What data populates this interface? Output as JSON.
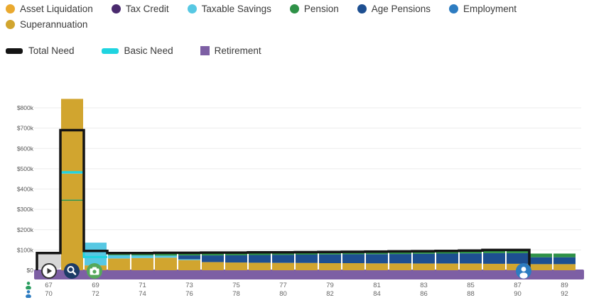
{
  "legend": {
    "series": [
      {
        "label": "Asset Liquidation",
        "color": "#eaa92f"
      },
      {
        "label": "Tax Credit",
        "color": "#4a2a6e"
      },
      {
        "label": "Taxable Savings",
        "color": "#57c8e3"
      },
      {
        "label": "Pension",
        "color": "#2e9147"
      },
      {
        "label": "Age Pensions",
        "color": "#1d4f91"
      },
      {
        "label": "Employment",
        "color": "#2d7cc1"
      },
      {
        "label": "Superannuation",
        "color": "#d1a52f"
      }
    ],
    "lines": [
      {
        "label": "Total Need",
        "color": "#141414"
      },
      {
        "label": "Basic Need",
        "color": "#1fd4e0"
      },
      {
        "label": "Retirement",
        "color": "#7d5fa4"
      }
    ]
  },
  "controls": {
    "buttons": [
      {
        "icon": "play-icon",
        "bg": "#ffffff"
      },
      {
        "icon": "magnifier-icon",
        "bg": "#1d3b66"
      },
      {
        "icon": "camera-icon",
        "bg": "#55a85c"
      },
      {
        "icon": "person-icon",
        "bg": "#2d7cc1"
      }
    ],
    "axis_icons": [
      {
        "icon": "person-icon",
        "color": "#2a9d5f"
      },
      {
        "icon": "person-icon",
        "color": "#2d7cc1"
      }
    ]
  },
  "chart_data": {
    "type": "bar",
    "stacked": true,
    "title": "",
    "xlabel": "",
    "ylabel": "",
    "unit": "$k",
    "ylim": [
      0,
      800
    ],
    "grid": true,
    "legend_position": "top",
    "y_ticks": [
      {
        "value": 0,
        "label": "$0"
      },
      {
        "value": 100,
        "label": "$100k"
      },
      {
        "value": 200,
        "label": "$200k"
      },
      {
        "value": 300,
        "label": "$300k"
      },
      {
        "value": 400,
        "label": "$400k"
      },
      {
        "value": 500,
        "label": "$500k"
      },
      {
        "value": 600,
        "label": "$600k"
      },
      {
        "value": 700,
        "label": "$700k"
      },
      {
        "value": 800,
        "label": "$800k"
      }
    ],
    "x_labels": [
      {
        "top": "67",
        "bottom": "70"
      },
      {
        "top": "69",
        "bottom": "72"
      },
      {
        "top": "71",
        "bottom": "74"
      },
      {
        "top": "73",
        "bottom": "76"
      },
      {
        "top": "75",
        "bottom": "78"
      },
      {
        "top": "77",
        "bottom": "80"
      },
      {
        "top": "79",
        "bottom": "82"
      },
      {
        "top": "81",
        "bottom": "84"
      },
      {
        "top": "83",
        "bottom": "86"
      },
      {
        "top": "85",
        "bottom": "88"
      },
      {
        "top": "87",
        "bottom": "90"
      },
      {
        "top": "89",
        "bottom": "92"
      }
    ],
    "series_colors": {
      "asset_liquidation": "#eaa92f",
      "tax_credit": "#4a2a6e",
      "taxable_savings": "#57c8e3",
      "pension": "#2e9147",
      "age_pensions": "#1d4f91",
      "employment": "#2d7cc1",
      "superannuation": "#d1a52f"
    },
    "bars": [
      [],
      [
        [
          "superannuation",
          342
        ],
        [
          "pension",
          6
        ],
        [
          "superannuation",
          128
        ],
        [
          "taxable_savings",
          8
        ],
        [
          "superannuation",
          360
        ]
      ],
      [
        [
          "superannuation",
          24
        ],
        [
          "taxable_savings",
          112
        ]
      ],
      [
        [
          "superannuation",
          58
        ],
        [
          "taxable_savings",
          16
        ],
        [
          "pension",
          9
        ]
      ],
      [
        [
          "superannuation",
          60
        ],
        [
          "taxable_savings",
          13
        ],
        [
          "pension",
          9
        ]
      ],
      [
        [
          "superannuation",
          62
        ],
        [
          "taxable_savings",
          10
        ],
        [
          "pension",
          9
        ]
      ],
      [
        [
          "superannuation",
          50
        ],
        [
          "taxable_savings",
          4
        ],
        [
          "age_pensions",
          19
        ],
        [
          "pension",
          9
        ]
      ],
      [
        [
          "superannuation",
          40
        ],
        [
          "age_pensions",
          33
        ],
        [
          "pension",
          10
        ]
      ],
      [
        [
          "superannuation",
          38
        ],
        [
          "age_pensions",
          36
        ],
        [
          "pension",
          10
        ]
      ],
      [
        [
          "superannuation",
          37
        ],
        [
          "age_pensions",
          38
        ],
        [
          "pension",
          10
        ]
      ],
      [
        [
          "superannuation",
          36
        ],
        [
          "age_pensions",
          40
        ],
        [
          "pension",
          10
        ]
      ],
      [
        [
          "superannuation",
          36
        ],
        [
          "age_pensions",
          41
        ],
        [
          "pension",
          10
        ]
      ],
      [
        [
          "superannuation",
          35
        ],
        [
          "age_pensions",
          43
        ],
        [
          "pension",
          10
        ]
      ],
      [
        [
          "superannuation",
          35
        ],
        [
          "age_pensions",
          44
        ],
        [
          "pension",
          10
        ]
      ],
      [
        [
          "superannuation",
          34
        ],
        [
          "age_pensions",
          45
        ],
        [
          "pension",
          11
        ]
      ],
      [
        [
          "superannuation",
          34
        ],
        [
          "age_pensions",
          46
        ],
        [
          "pension",
          11
        ]
      ],
      [
        [
          "superannuation",
          33
        ],
        [
          "age_pensions",
          48
        ],
        [
          "pension",
          11
        ]
      ],
      [
        [
          "superannuation",
          33
        ],
        [
          "age_pensions",
          49
        ],
        [
          "pension",
          11
        ]
      ],
      [
        [
          "superannuation",
          33
        ],
        [
          "age_pensions",
          50
        ],
        [
          "pension",
          12
        ]
      ],
      [
        [
          "superannuation",
          32
        ],
        [
          "age_pensions",
          52
        ],
        [
          "pension",
          13
        ]
      ],
      [
        [
          "superannuation",
          32
        ],
        [
          "age_pensions",
          52
        ],
        [
          "pension",
          13
        ]
      ],
      [
        [
          "superannuation",
          30
        ],
        [
          "age_pensions",
          34
        ],
        [
          "pension",
          18
        ]
      ],
      [
        [
          "superannuation",
          30
        ],
        [
          "age_pensions",
          34
        ],
        [
          "pension",
          18
        ]
      ]
    ],
    "total_need": [
      85,
      690,
      95,
      85,
      85,
      86,
      86,
      87,
      87,
      88,
      88,
      89,
      90,
      91,
      92,
      93,
      94,
      95,
      97,
      100,
      100,
      null,
      null
    ],
    "basic_need": [
      null,
      483,
      65,
      null,
      null,
      null,
      null,
      null,
      null,
      null,
      null,
      null,
      null,
      null,
      null,
      null,
      null,
      null,
      null,
      null,
      null,
      null,
      null
    ],
    "total_need_color": "#141414",
    "basic_need_color": "#1fd4e0",
    "retirement_band": {
      "label": "Retirement",
      "color": "#7d5fa4"
    }
  }
}
